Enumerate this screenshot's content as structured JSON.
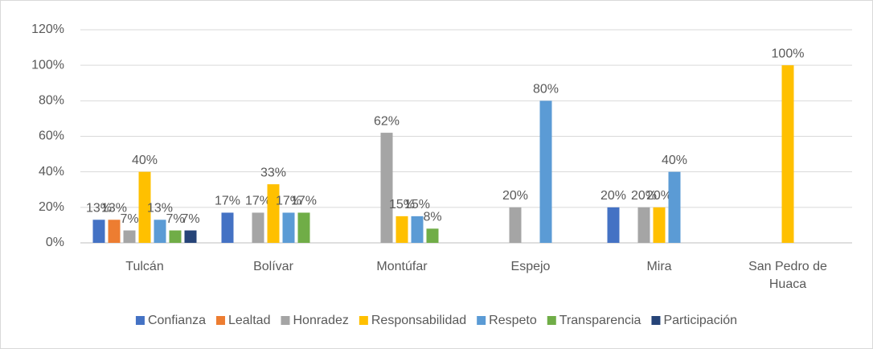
{
  "chart_data": {
    "type": "bar",
    "categories": [
      "Tulcán",
      "Bolívar",
      "Montúfar",
      "Espejo",
      "Mira",
      "San Pedro de Huaca"
    ],
    "series": [
      {
        "name": "Confianza",
        "color": "#4472c4",
        "values": [
          13,
          17,
          null,
          null,
          20,
          null
        ],
        "value_labels": [
          "13%",
          "17%",
          null,
          null,
          "20%",
          null
        ]
      },
      {
        "name": "Lealtad",
        "color": "#ed7d31",
        "values": [
          13,
          null,
          null,
          null,
          null,
          null
        ],
        "value_labels": [
          "13%",
          null,
          null,
          null,
          null,
          null
        ]
      },
      {
        "name": "Honradez",
        "color": "#a5a5a5",
        "values": [
          7,
          17,
          62,
          20,
          20,
          null
        ],
        "value_labels": [
          "7%",
          "17%",
          "62%",
          "20%",
          "20%",
          null
        ]
      },
      {
        "name": "Responsabilidad",
        "color": "#ffc000",
        "values": [
          40,
          33,
          15,
          null,
          20,
          100
        ],
        "value_labels": [
          "40%",
          "33%",
          "15%",
          null,
          "20%",
          "100%"
        ]
      },
      {
        "name": "Respeto",
        "color": "#5b9bd5",
        "values": [
          13,
          17,
          15,
          80,
          40,
          null
        ],
        "value_labels": [
          "13%",
          "17%",
          "15%",
          "80%",
          "40%",
          null
        ]
      },
      {
        "name": "Transparencia",
        "color": "#70ad47",
        "values": [
          7,
          17,
          8,
          null,
          null,
          null
        ],
        "value_labels": [
          "7%",
          "17%",
          "8%",
          null,
          null,
          null
        ]
      },
      {
        "name": "Participación",
        "color": "#264478",
        "values": [
          7,
          null,
          null,
          null,
          null,
          null
        ],
        "value_labels": [
          "7%",
          null,
          null,
          null,
          null,
          null
        ]
      }
    ],
    "ylim": [
      0,
      120
    ],
    "yticks": [
      {
        "value": 0,
        "label": "0%"
      },
      {
        "value": 20,
        "label": "20%"
      },
      {
        "value": 40,
        "label": "40%"
      },
      {
        "value": 60,
        "label": "60%"
      },
      {
        "value": 80,
        "label": "80%"
      },
      {
        "value": 100,
        "label": "100%"
      },
      {
        "value": 120,
        "label": "120%"
      }
    ],
    "grid": true,
    "legend": "bottom"
  }
}
